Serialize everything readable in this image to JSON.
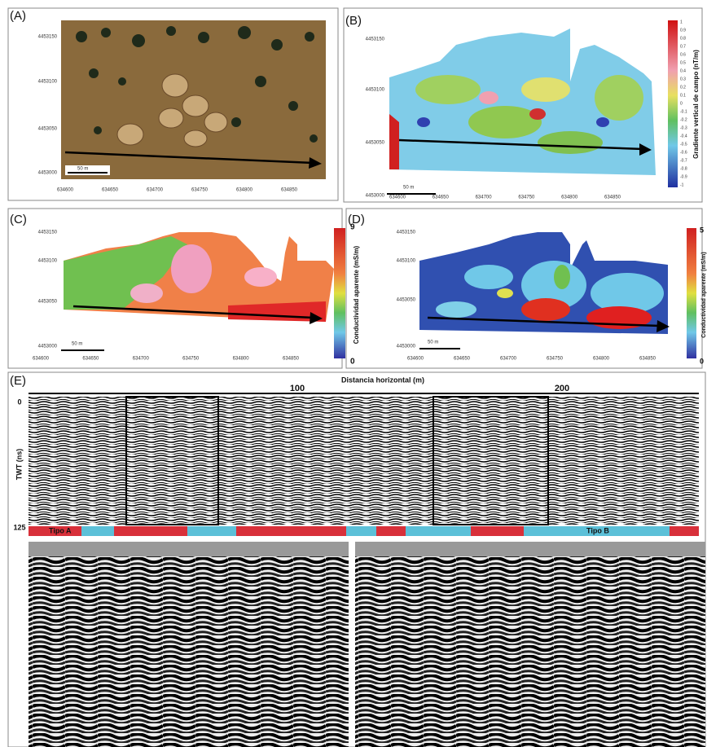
{
  "panels": {
    "A": {
      "label": "(A)",
      "y_ticks": [
        "4453150",
        "4453100",
        "4453050",
        "4453000"
      ],
      "x_ticks": [
        "634600",
        "634650",
        "634700",
        "634750",
        "634800",
        "634850"
      ],
      "scale": "50 m"
    },
    "B": {
      "label": "(B)",
      "y_ticks": [
        "4453150",
        "4453100",
        "4453050",
        "4453000"
      ],
      "x_ticks": [
        "634600",
        "634650",
        "634700",
        "634750",
        "634800",
        "634850"
      ],
      "scale": "50 m",
      "colorbar_title": "Gradiente vertical de campo (nT/m)",
      "colorbar_ticks": [
        "1",
        "0.9",
        "0.8",
        "0.7",
        "0.6",
        "0.5",
        "0.4",
        "0.3",
        "0.2",
        "0.1",
        "0",
        "-0.1",
        "-0.2",
        "-0.3",
        "-0.4",
        "-0.5",
        "-0.6",
        "-0.7",
        "-0.8",
        "-0.9",
        "-1"
      ]
    },
    "C": {
      "label": "(C)",
      "y_ticks": [
        "4453150",
        "4453100",
        "4453050",
        "4453000"
      ],
      "x_ticks": [
        "634600",
        "634650",
        "634700",
        "634750",
        "634800",
        "634850"
      ],
      "scale": "50 m",
      "colorbar_title": "Conductividad aparente (mS/m)",
      "colorbar_max": "9",
      "colorbar_min": "0"
    },
    "D": {
      "label": "(D)",
      "y_ticks": [
        "4453150",
        "4453100",
        "4453050",
        "4453000"
      ],
      "x_ticks": [
        "634600",
        "634650",
        "634700",
        "634750",
        "634800",
        "634850"
      ],
      "scale": "50 m",
      "colorbar_title": "Conductividad aparente (mS/m)",
      "colorbar_max": "5",
      "colorbar_min": "0"
    },
    "E": {
      "label": "(E)",
      "x_title": "Distancia horizontal (m)",
      "x_ticks": [
        "100",
        "200"
      ],
      "y_title": "TWT (ns)",
      "y_top": "0",
      "y_bottom": "125",
      "type_a": "Tipo A",
      "type_b": "Tipo B"
    }
  }
}
